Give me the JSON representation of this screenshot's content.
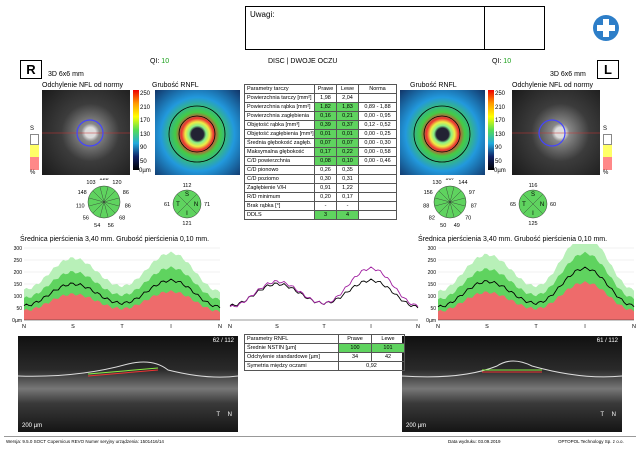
{
  "header": {
    "uwagi_label": "Uwagi:",
    "qi_label_left": "QI:",
    "qi_value_left": "10",
    "mode": "DISC | DWOJE OCZU",
    "qi_label_right": "QI:",
    "qi_value_right": "10",
    "eye_left": "R",
    "eye_right": "L",
    "scan_left": "3D  6x6 mm",
    "scan_right": "3D  6x6 mm"
  },
  "panels": {
    "nfl_dev_left": "Odchylenie NFL od normy",
    "rnfl_thick_left": "Grubość RNFL",
    "rnfl_thick_right": "Grubość RNFL",
    "nfl_dev_right": "Odchylenie NFL od normy",
    "scale_ticks": [
      "250",
      "210",
      "170",
      "130",
      "90",
      "50",
      "0µm"
    ],
    "s_marker": "S",
    "pct_marker": "%"
  },
  "disc_table": {
    "headers": [
      "Parametry tarczy",
      "Prawe",
      "Lewe",
      "Norma"
    ],
    "rows": [
      [
        "Powierzchnia tarczy [mm²]",
        "1,98",
        "2,04",
        ""
      ],
      [
        "Powierzchnia rąbka [mm²]",
        "1,82",
        "1,83",
        "0,89 - 1,88"
      ],
      [
        "Powierzchnia zagłębienia",
        "0,16",
        "0,21",
        "0,00 - 0,95"
      ],
      [
        "Objętość rąbka [mm³]",
        "0,39",
        "0,37",
        "0,12 - 0,52"
      ],
      [
        "Objętość zagłębienia [mm³]",
        "0,01",
        "0,01",
        "0,00 - 0,25"
      ],
      [
        "Średnia głębokość zagłęb.",
        "0,07",
        "0,07",
        "0,00 - 0,30"
      ],
      [
        "Maksymalna głębokość",
        "0,17",
        "0,22",
        "0,00 - 0,58"
      ],
      [
        "C/D powierzchnia",
        "0,08",
        "0,10",
        "0,00 - 0,46"
      ],
      [
        "C/D pionowo",
        "0,26",
        "0,35",
        ""
      ],
      [
        "C/D poziomo",
        "0,30",
        "0,31",
        ""
      ],
      [
        "Zagłębienie V/H",
        "0,91",
        "1,22",
        ""
      ],
      [
        "R/D minimum",
        "0,20",
        "0,17",
        ""
      ],
      [
        "Brak rąbka [°]",
        "-",
        "-",
        ""
      ],
      [
        "DDLS",
        "3",
        "4",
        ""
      ]
    ],
    "green_cells": [
      [
        1,
        1
      ],
      [
        1,
        2
      ],
      [
        2,
        1
      ],
      [
        2,
        2
      ],
      [
        3,
        1
      ],
      [
        3,
        2
      ],
      [
        4,
        1
      ],
      [
        4,
        2
      ],
      [
        5,
        1
      ],
      [
        5,
        2
      ],
      [
        6,
        1
      ],
      [
        6,
        2
      ],
      [
        7,
        1
      ],
      [
        7,
        2
      ],
      [
        13,
        1
      ],
      [
        13,
        2
      ]
    ]
  },
  "clock_left": {
    "values": [
      "128",
      "120",
      "86",
      "86",
      "68",
      "56",
      "54",
      "56",
      "110",
      "148",
      "103"
    ],
    "quad_top": "112",
    "quad_bottom": "121",
    "quad_left": "61",
    "quad_right": "71",
    "S": "S",
    "N": "N",
    "T": "T",
    "I": "I"
  },
  "clock_right": {
    "values": [
      "107",
      "144",
      "97",
      "87",
      "70",
      "49",
      "50",
      "82",
      "88",
      "156",
      "130"
    ],
    "quad_top": "116",
    "quad_bottom": "125",
    "quad_left": "65",
    "quad_right": "60",
    "S": "S",
    "N": "N",
    "T": "T",
    "I": "I"
  },
  "ring": {
    "title_left": "Średnica pierścienia 3,40 mm. Grubość pierścienia 0,10 mm.",
    "title_right": "Średnica pierścienia 3,40 mm. Grubość pierścienia 0,10 mm.",
    "y_ticks": [
      "300",
      "250",
      "200",
      "150",
      "100",
      "50",
      "0µm"
    ],
    "x_labels": [
      "N",
      "S",
      "T",
      "I",
      "N"
    ]
  },
  "rnfl_table": {
    "header": "Parametry RNFL",
    "col_right": "Prawe",
    "col_left": "Lewe",
    "rows": [
      [
        "Średnie NSTIN [µm]",
        "100",
        "101"
      ],
      [
        "Odchylenie standardowe [µm]",
        "34",
        "42"
      ],
      [
        "Symetria między oczami",
        "0,92",
        ""
      ]
    ]
  },
  "bscan": {
    "counter_left": "62 / 112",
    "counter_right": "61 / 112",
    "scale": "200 µm",
    "t_marker": "T",
    "n_marker": "N"
  },
  "footer": {
    "version": "Wersja: 9.5.0    SOCT Copernicus REVO    Numer seryjny urządzenia: 1501416/14",
    "print_date": "Data wydruku: 03.09.2019",
    "company": "OPTOPOL Technology Sp. z o.o."
  },
  "chart_data": [
    {
      "type": "line",
      "title": "Średnica pierścienia 3,40 mm. Grubość pierścienia 0,10 mm.",
      "x": [
        "N",
        "S",
        "T",
        "I",
        "N"
      ],
      "ylim": [
        0,
        300
      ],
      "series": [
        {
          "values": [
            60,
            150,
            70,
            165,
            55
          ]
        }
      ]
    },
    {
      "type": "line",
      "x": [
        "N",
        "S",
        "T",
        "I",
        "N"
      ],
      "ylim": [
        0,
        300
      ],
      "series": [
        {
          "values": [
            60,
            150,
            70,
            165,
            55
          ]
        },
        {
          "values": [
            55,
            160,
            70,
            215,
            60
          ]
        }
      ]
    },
    {
      "type": "line",
      "title": "Średnica pierścienia 3,40 mm. Grubość pierścienia 0,10 mm.",
      "x": [
        "N",
        "S",
        "T",
        "I",
        "N"
      ],
      "ylim": [
        0,
        300
      ],
      "series": [
        {
          "values": [
            55,
            160,
            70,
            215,
            60
          ]
        }
      ]
    }
  ]
}
